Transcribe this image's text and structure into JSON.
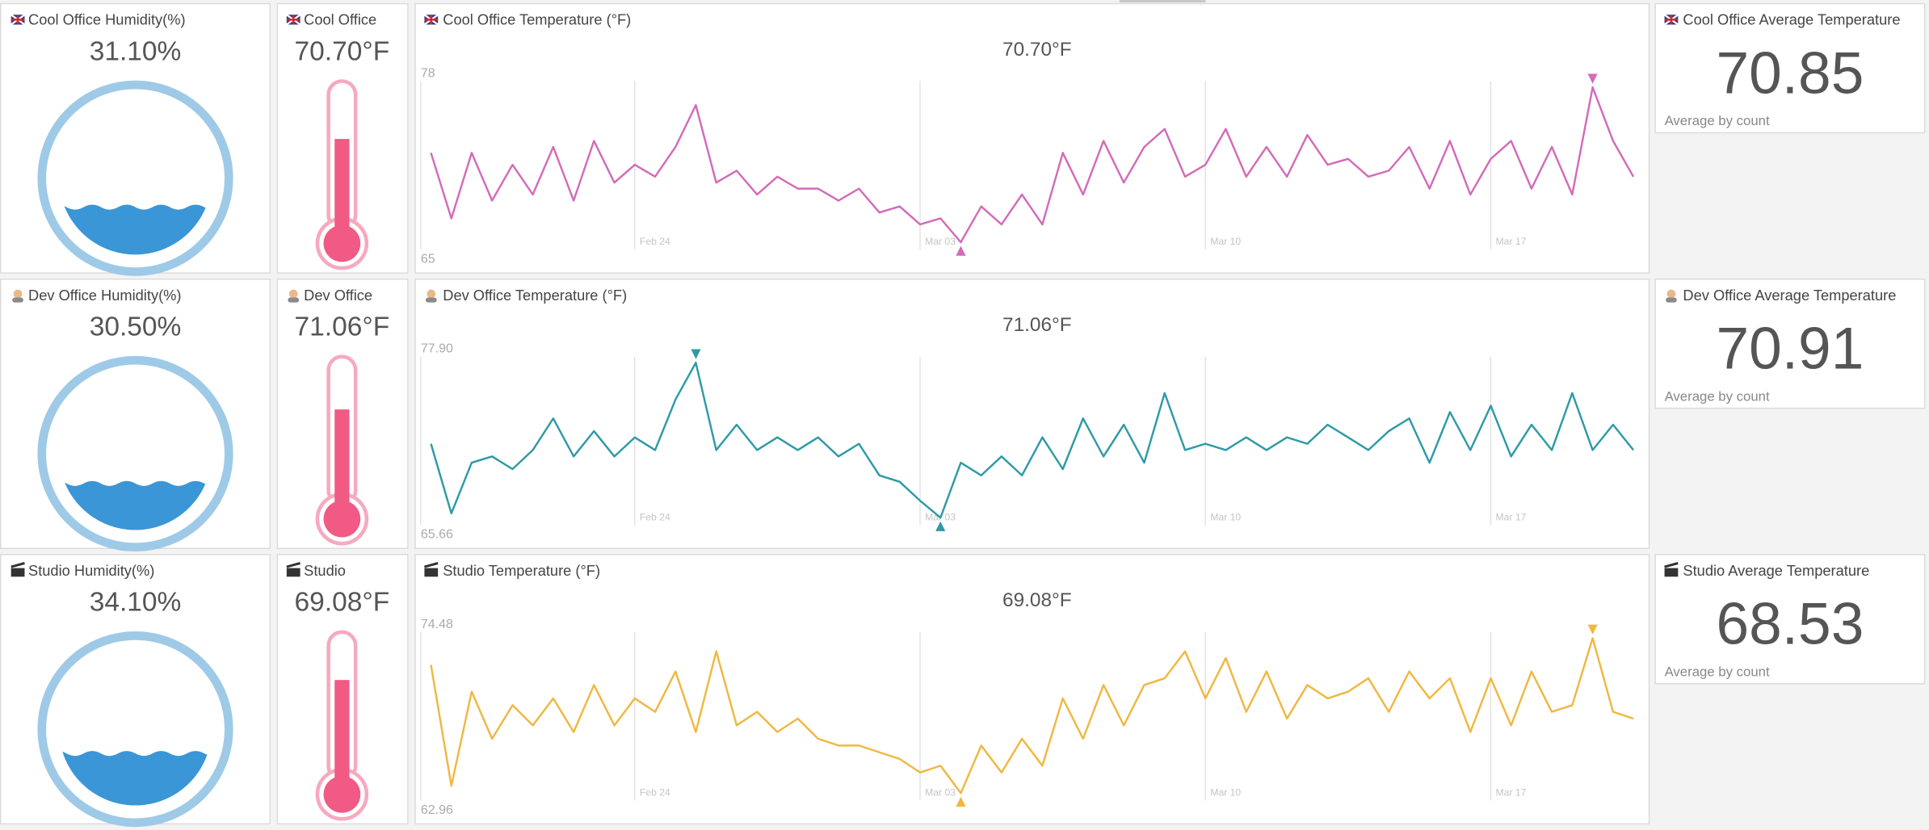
{
  "panels": [
    {
      "humidity_title": "Cool Office Humidity(%)",
      "humidity": {
        "value": 31.1,
        "label": "31.10%"
      },
      "thermo_title": "Cool Office",
      "thermo_label": "70.70°F",
      "average_title": "Cool Office Average Temperature",
      "average": 70.85,
      "average_note": "Average by count"
    },
    {
      "humidity_title": "Dev Office Humidity(%)",
      "humidity": {
        "value": 30.5,
        "label": "30.50%"
      },
      "thermo_title": "Dev Office",
      "thermo_label": "71.06°F",
      "average_title": "Dev Office Average Temperature",
      "average": 70.91,
      "average_note": "Average by count"
    },
    {
      "humidity_title": "Studio Humidity(%)",
      "humidity": {
        "value": 34.1,
        "label": "34.10%"
      },
      "thermo_title": "Studio",
      "thermo_label": "69.08°F",
      "average_title": "Studio Average Temperature",
      "average": 68.53,
      "average_note": "Average by count"
    }
  ],
  "chart_data": [
    {
      "type": "line",
      "title": "Cool Office Temperature (°F)",
      "subtitle": "70.70°F",
      "color": "#d36bb8",
      "categories": [
        null,
        null,
        null,
        null,
        null,
        null,
        null,
        null,
        null,
        null,
        "Feb 24",
        null,
        null,
        null,
        null,
        null,
        null,
        null,
        null,
        null,
        null,
        null,
        null,
        null,
        "Mar 03",
        null,
        null,
        null,
        null,
        null,
        null,
        null,
        null,
        null,
        null,
        null,
        null,
        null,
        "Mar 10",
        null,
        null,
        null,
        null,
        null,
        null,
        null,
        null,
        null,
        null,
        null,
        null,
        null,
        "Mar 17",
        null,
        null,
        null,
        null,
        null,
        null,
        null
      ],
      "values": [
        72.5,
        67,
        72.5,
        68.5,
        71.5,
        69,
        73,
        68.5,
        73.5,
        70,
        71.5,
        70.5,
        73,
        76.5,
        70,
        71,
        69,
        70.5,
        69.5,
        69.5,
        68.5,
        69.5,
        67.5,
        68,
        66.5,
        67,
        65,
        68,
        66.5,
        69,
        66.5,
        72.5,
        69,
        73.5,
        70,
        73,
        74.5,
        70.5,
        71.5,
        74.5,
        70.5,
        73,
        70.5,
        74,
        71.5,
        72,
        70.5,
        71,
        73,
        69.5,
        73.5,
        69,
        72,
        73.5,
        69.5,
        73,
        69,
        78,
        73.5,
        70.5
      ],
      "ylim": [
        65,
        78
      ],
      "yticks": [
        78,
        65
      ]
    },
    {
      "type": "line",
      "title": "Dev Office Temperature (°F)",
      "subtitle": "71.06°F",
      "color": "#2e9aa6",
      "categories": [
        null,
        null,
        null,
        null,
        null,
        null,
        null,
        null,
        null,
        null,
        "Feb 24",
        null,
        null,
        null,
        null,
        null,
        null,
        null,
        null,
        null,
        null,
        null,
        null,
        null,
        "Mar 03",
        null,
        null,
        null,
        null,
        null,
        null,
        null,
        null,
        null,
        null,
        null,
        null,
        null,
        "Mar 10",
        null,
        null,
        null,
        null,
        null,
        null,
        null,
        null,
        null,
        null,
        null,
        null,
        null,
        "Mar 17",
        null,
        null,
        null,
        null,
        null,
        null,
        null
      ],
      "values": [
        71.5,
        66,
        70,
        70.5,
        69.5,
        71,
        73.5,
        70.5,
        72.5,
        70.5,
        72,
        71,
        75,
        77.9,
        71,
        73,
        71,
        72,
        71,
        72,
        70.5,
        71.5,
        69,
        68.5,
        67,
        65.66,
        70,
        69,
        70.5,
        69,
        72,
        69.5,
        73.5,
        70.5,
        73,
        70,
        75.5,
        71,
        71.5,
        71,
        72,
        71,
        72,
        71.5,
        73,
        72,
        71,
        72.5,
        73.5,
        70,
        74,
        71,
        74.5,
        70.5,
        73,
        71,
        75.5,
        71,
        73,
        71
      ],
      "ylim": [
        65.66,
        77.9
      ],
      "yticks": [
        {
          "value": 77.9,
          "label": "77.90"
        },
        65.66
      ]
    },
    {
      "type": "line",
      "title": "Studio Temperature (°F)",
      "subtitle": "69.08°F",
      "color": "#efb840",
      "categories": [
        null,
        null,
        null,
        null,
        null,
        null,
        null,
        null,
        null,
        null,
        "Feb 24",
        null,
        null,
        null,
        null,
        null,
        null,
        null,
        null,
        null,
        null,
        null,
        null,
        null,
        "Mar 03",
        null,
        null,
        null,
        null,
        null,
        null,
        null,
        null,
        null,
        null,
        null,
        null,
        null,
        "Mar 10",
        null,
        null,
        null,
        null,
        null,
        null,
        null,
        null,
        null,
        null,
        null,
        null,
        null,
        "Mar 17",
        null,
        null,
        null,
        null,
        null,
        null,
        null
      ],
      "values": [
        72.5,
        63.5,
        70.5,
        67,
        69.5,
        68,
        70,
        67.5,
        71,
        68,
        70,
        69,
        72,
        67.5,
        73.5,
        68,
        69,
        67.5,
        68.5,
        67,
        66.5,
        66.5,
        66,
        65.5,
        64.5,
        65,
        62.96,
        66.5,
        64.5,
        67,
        65,
        70,
        67,
        71,
        68,
        71,
        71.5,
        73.5,
        70,
        73,
        69,
        72,
        68.5,
        71,
        70,
        70.5,
        71.5,
        69,
        72,
        70,
        71.5,
        67.5,
        71.5,
        68,
        72,
        69,
        69.5,
        74.48,
        69,
        68.5
      ],
      "ylim": [
        62.96,
        74.48
      ],
      "yticks": [
        74.48,
        62.96
      ]
    }
  ]
}
